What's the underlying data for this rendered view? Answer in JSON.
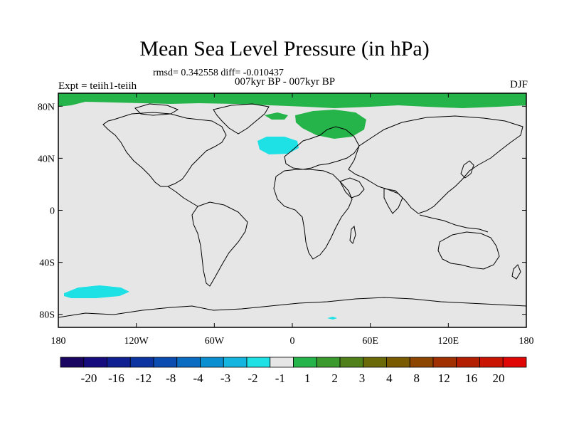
{
  "title": "Mean Sea Level Pressure (in hPa)",
  "stats_label": "rmsd= 0.342558 diff= -0.010437",
  "subtitle": "007kyr BP - 007kyr BP",
  "left_label": "Expt = teiih1-teiih",
  "right_label": "DJF",
  "map": {
    "lon_ticks": [
      "180",
      "120W",
      "60W",
      "0",
      "60E",
      "120E",
      "180"
    ],
    "lat_ticks": [
      "80N",
      "40N",
      "0",
      "40S",
      "80S"
    ],
    "background_color": "#e6e6e6",
    "coastline_color": "#000000",
    "anomaly_regions": [
      {
        "name": "arctic-positive",
        "level": "1 to 2",
        "color": "#25b44a"
      },
      {
        "name": "north-atlantic-positive",
        "level": "1 to 2",
        "color": "#25b44a"
      },
      {
        "name": "europe-negative",
        "level": "-2 to -1",
        "color": "#1ee1e6"
      },
      {
        "name": "south-pacific-negative",
        "level": "-2 to -1",
        "color": "#1ee1e6"
      },
      {
        "name": "antarctic-negative",
        "level": "-2 to -1",
        "color": "#1ee1e6"
      }
    ]
  },
  "colorbar": {
    "labels": [
      "-20",
      "-16",
      "-12",
      "-8",
      "-4",
      "-3",
      "-2",
      "-1",
      "1",
      "2",
      "3",
      "4",
      "8",
      "12",
      "16",
      "20"
    ],
    "colors": [
      "#1a0660",
      "#160c7e",
      "#102090",
      "#0c34a0",
      "#0a4cb0",
      "#0a6cc0",
      "#0a90d0",
      "#14b6e0",
      "#1ee1e6",
      "#e6e6e6",
      "#25b44a",
      "#3a9a2e",
      "#4f8019",
      "#6a6a08",
      "#7a5a00",
      "#8c4600",
      "#a03000",
      "#b41e00",
      "#c81400",
      "#e00606"
    ]
  }
}
